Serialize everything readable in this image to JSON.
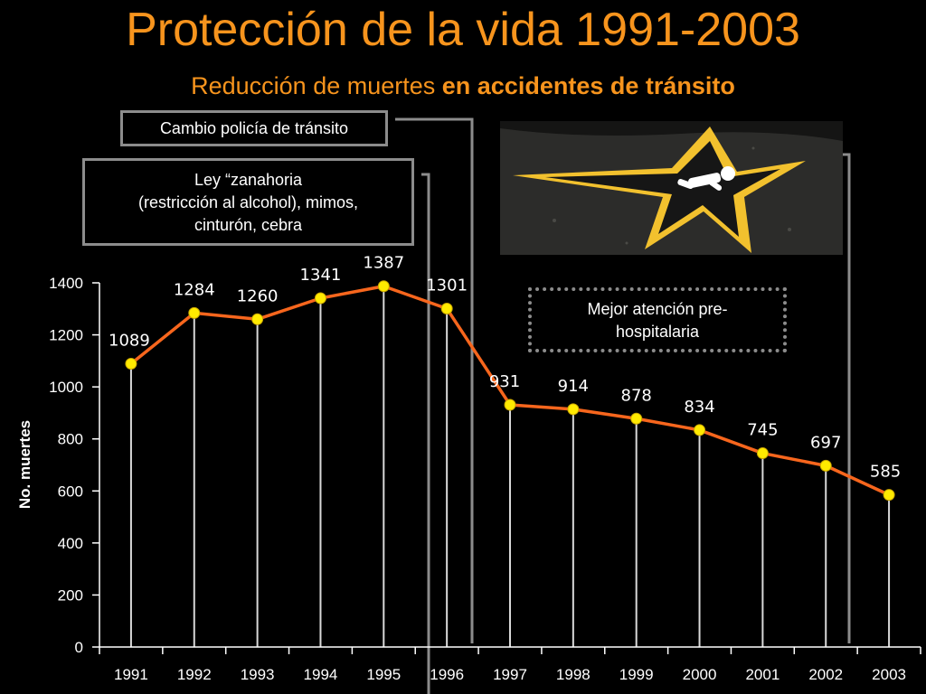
{
  "header": {
    "title": "Protección de la vida 1991-2003",
    "subtitle_normal": "Reducción de muertes ",
    "subtitle_bold": "en accidentes de tránsito"
  },
  "annotations": {
    "police": "Cambio policía de tránsito",
    "law_line1": "Ley “zanahoria",
    "law_line2": "(restricción al alcohol), mimos,",
    "law_line3": "cinturón, cebra",
    "care_line1": "Mejor atención pre-",
    "care_line2": "hospitalaria"
  },
  "photo": {
    "icon": "road-star-pedestrian-marking-icon",
    "colors": {
      "star": "#f2c12e",
      "road": "#2c2c2a"
    }
  },
  "colors": {
    "line": "#f7661d",
    "marker": "#ffea00",
    "accent": "#f7941d"
  },
  "chart_data": {
    "type": "line",
    "title": "",
    "xlabel": "",
    "ylabel": "No. muertes",
    "categories": [
      "1991",
      "1992",
      "1993",
      "1994",
      "1995",
      "1996",
      "1997",
      "1998",
      "1999",
      "2000",
      "2001",
      "2002",
      "2003"
    ],
    "series": [
      {
        "values": [
          1089,
          1284,
          1260,
          1341,
          1387,
          1301,
          931,
          914,
          878,
          834,
          745,
          697,
          585
        ]
      }
    ],
    "ylim": [
      0,
      1400
    ],
    "yticks": [
      0,
      200,
      400,
      600,
      800,
      1000,
      1200,
      1400
    ],
    "grid": "vertical"
  }
}
